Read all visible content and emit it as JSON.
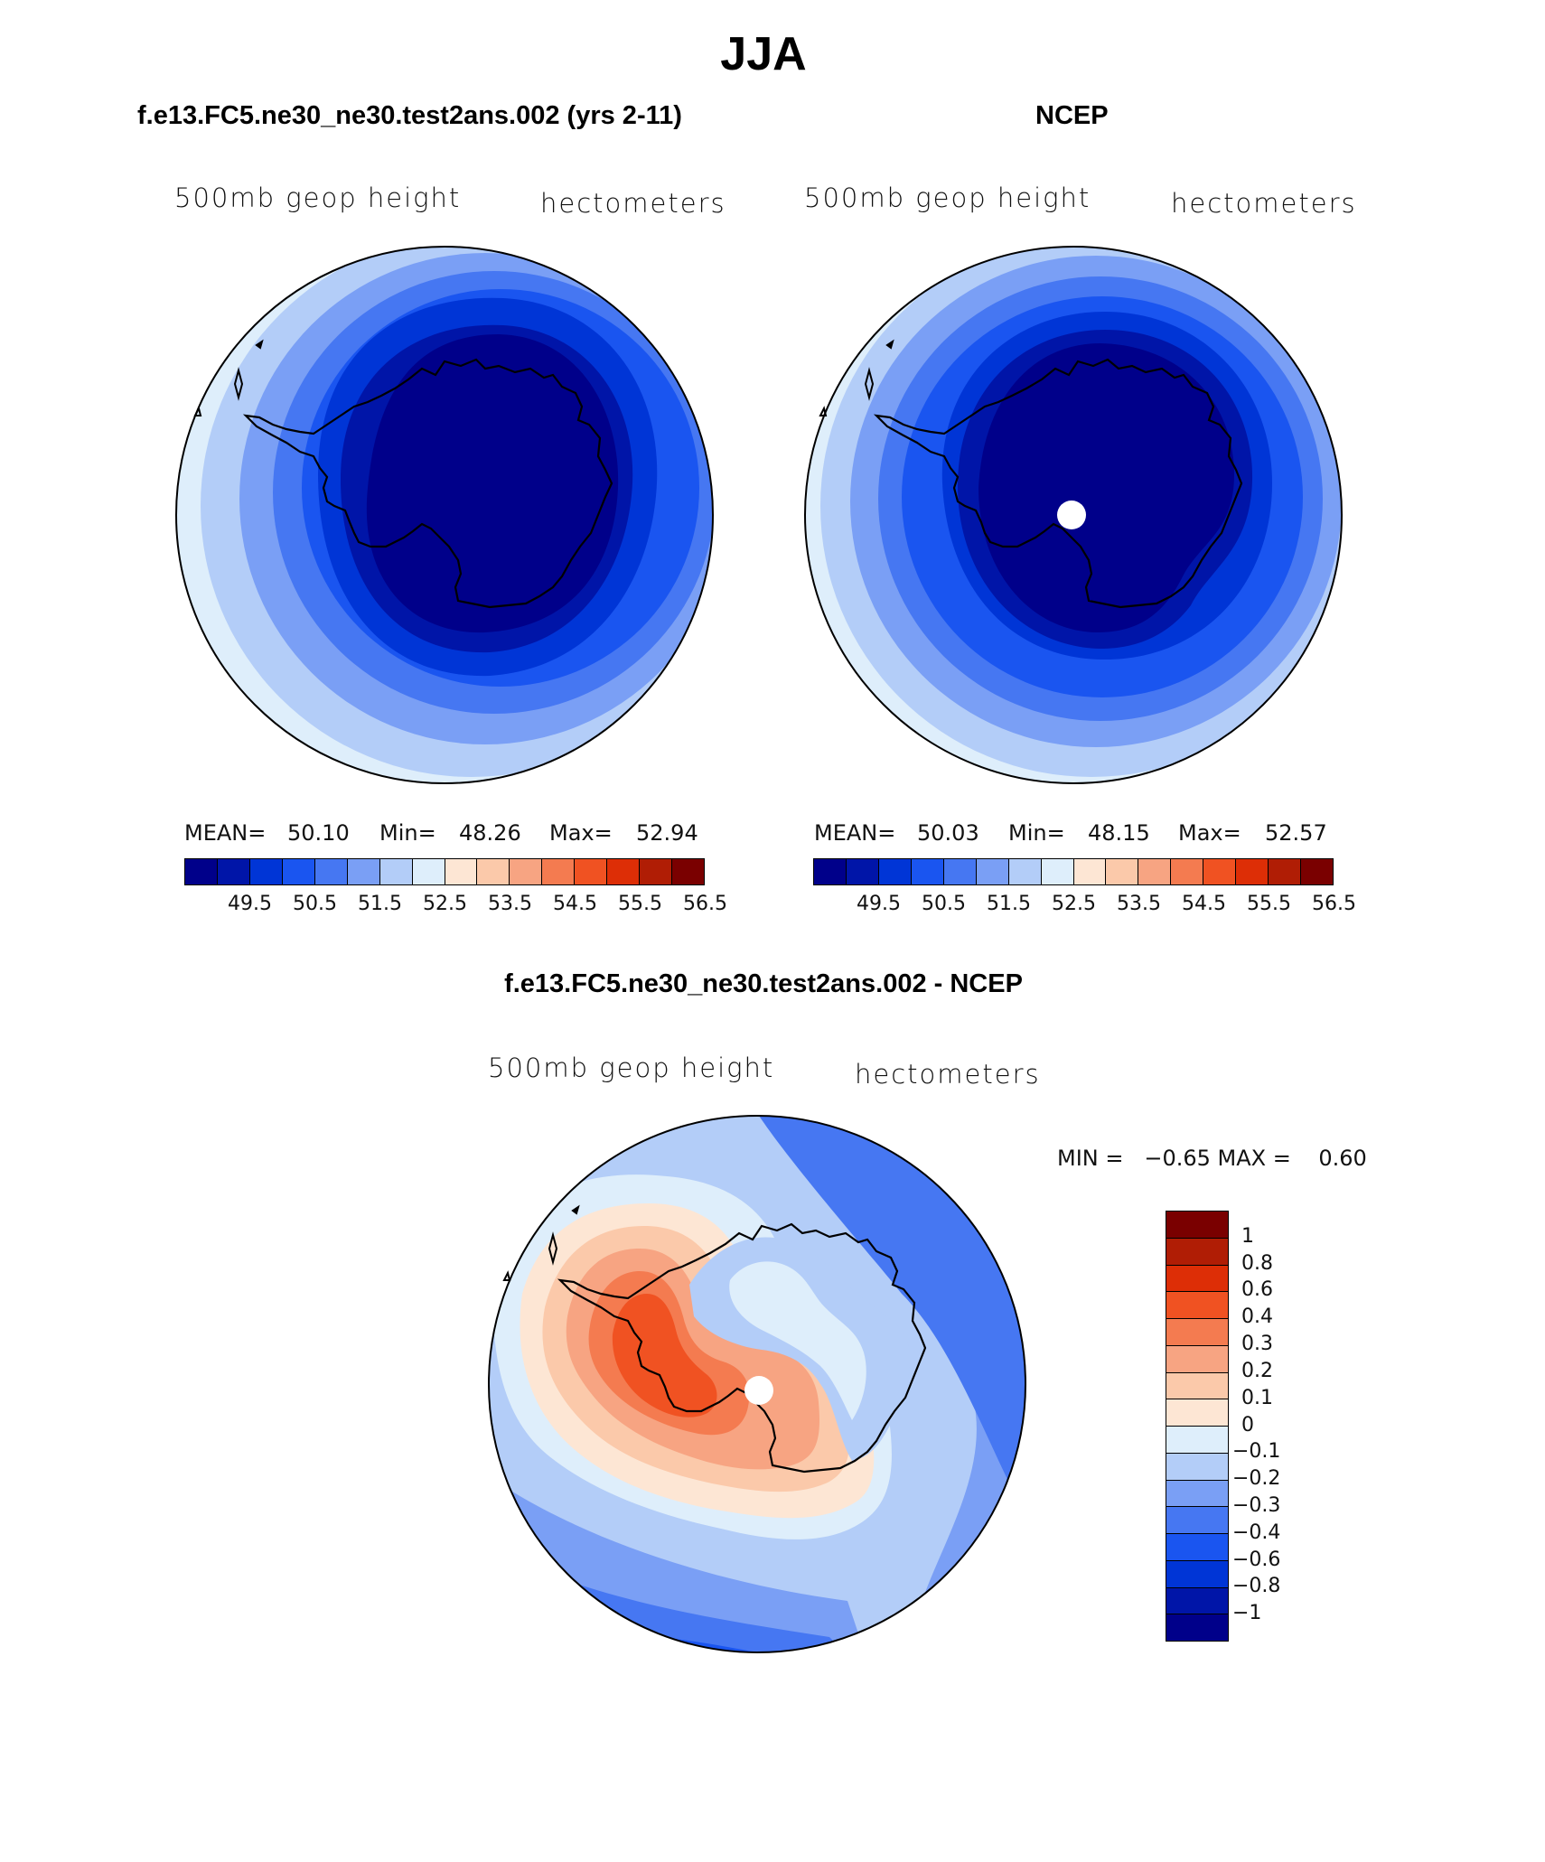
{
  "figure_title": "JJA",
  "panels": [
    {
      "header": "f.e13.FC5.ne30_ne30.test2ans.002 (yrs 2-11)",
      "left_label": "500mb geop height",
      "right_label": "hectometers",
      "stats": {
        "mean_label": "MEAN=",
        "mean": "50.10",
        "min_label": "Min=",
        "min": "48.26",
        "max_label": "Max=",
        "max": "52.94"
      }
    },
    {
      "header": "NCEP",
      "left_label": "500mb geop height",
      "right_label": "hectometers",
      "stats": {
        "mean_label": "MEAN=",
        "mean": "50.03",
        "min_label": "Min=",
        "min": "48.15",
        "max_label": "Max=",
        "max": "52.57"
      }
    },
    {
      "header": "f.e13.FC5.ne30_ne30.test2ans.002 - NCEP",
      "left_label": "500mb geop height",
      "right_label": "hectometers",
      "minmax_text": "MIN =   −0.65 MAX =    0.60"
    }
  ],
  "abs_colorbar": {
    "colors": [
      "#00008a",
      "#0015a8",
      "#0035d6",
      "#1a55f0",
      "#4677f2",
      "#7a9ff5",
      "#b3cdf8",
      "#deeefb",
      "#fde6d4",
      "#fbc9aa",
      "#f7a482",
      "#f47b50",
      "#f05222",
      "#dd2e06",
      "#b01d05",
      "#7a0000"
    ],
    "tick_labels": [
      "49.5",
      "50.5",
      "51.5",
      "52.5",
      "53.5",
      "54.5",
      "55.5",
      "56.5"
    ]
  },
  "diff_colorbar": {
    "colors": [
      "#7a0000",
      "#b01d05",
      "#dd2e06",
      "#f05222",
      "#f47b50",
      "#f7a482",
      "#fbc9aa",
      "#fde6d4",
      "#deeefb",
      "#b3cdf8",
      "#7a9ff5",
      "#4677f2",
      "#1a55f0",
      "#0035d6",
      "#0015a8",
      "#00008a"
    ],
    "tick_labels": [
      "1",
      "0.8",
      "0.6",
      "0.4",
      "0.3",
      "0.2",
      "0.1",
      "0",
      "−0.1",
      "−0.2",
      "−0.3",
      "−0.4",
      "−0.6",
      "−0.8",
      "−1"
    ]
  },
  "chart_data": [
    {
      "type": "heatmap",
      "title": "f.e13.FC5.ne30_ne30.test2ans.002 (yrs 2-11)",
      "variable": "500mb geop height",
      "units": "hectometers",
      "projection": "south polar stereographic",
      "mean": 50.1,
      "min": 48.26,
      "max": 52.94,
      "contour_levels": [
        49,
        49.5,
        50,
        50.5,
        51,
        51.5,
        52,
        52.5,
        53,
        53.5,
        54,
        54.5,
        55,
        55.5,
        56,
        56.5
      ]
    },
    {
      "type": "heatmap",
      "title": "NCEP",
      "variable": "500mb geop height",
      "units": "hectometers",
      "projection": "south polar stereographic",
      "mean": 50.03,
      "min": 48.15,
      "max": 52.57,
      "contour_levels": [
        49,
        49.5,
        50,
        50.5,
        51,
        51.5,
        52,
        52.5,
        53,
        53.5,
        54,
        54.5,
        55,
        55.5,
        56,
        56.5
      ]
    },
    {
      "type": "heatmap",
      "title": "f.e13.FC5.ne30_ne30.test2ans.002 - NCEP",
      "variable": "500mb geop height",
      "units": "hectometers",
      "projection": "south polar stereographic",
      "min": -0.65,
      "max": 0.6,
      "contour_levels": [
        -1,
        -0.8,
        -0.6,
        -0.4,
        -0.3,
        -0.2,
        -0.1,
        0,
        0.1,
        0.2,
        0.3,
        0.4,
        0.6,
        0.8,
        1
      ]
    }
  ]
}
